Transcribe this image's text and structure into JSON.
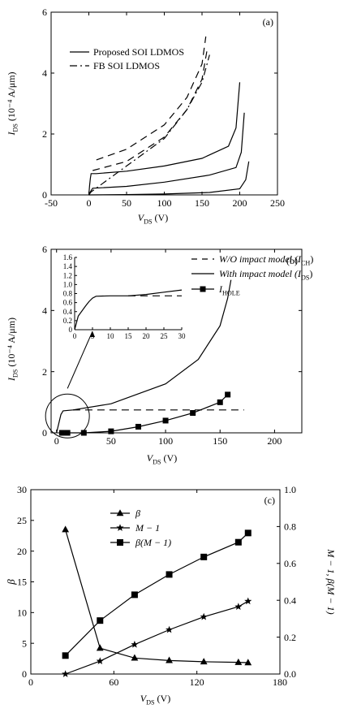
{
  "chart_data": [
    {
      "panel": "(a)",
      "type": "line",
      "xlabel_main": "V",
      "xlabel_sub": "DS",
      "xlabel_unit": "(V)",
      "ylabel_main": "I",
      "ylabel_sub": "DS",
      "ylabel_unit": "(10⁻⁴ A/μm)",
      "xlim": [
        -50,
        250
      ],
      "ylim": [
        0,
        6
      ],
      "xticks": [
        "-50",
        "0",
        "50",
        "100",
        "150",
        "200",
        "250"
      ],
      "yticks": [
        "0",
        "2",
        "4",
        "6"
      ],
      "legend": [
        "Proposed SOI LDMOS",
        "FB SOI LDMOS"
      ],
      "series": [
        {
          "name": "Proposed SOI LDMOS",
          "style": "solid",
          "points": [
            [
              0,
              0
            ],
            [
              1,
              0.3
            ],
            [
              2,
              0.55
            ],
            [
              3,
              0.7
            ],
            [
              10,
              0.7
            ],
            [
              50,
              0.78
            ],
            [
              100,
              0.95
            ],
            [
              150,
              1.2
            ],
            [
              185,
              1.6
            ],
            [
              195,
              2.2
            ],
            [
              200,
              3.7
            ]
          ]
        },
        {
          "name": "Proposed SOI LDMOS",
          "style": "solid",
          "points": [
            [
              0,
              0
            ],
            [
              2,
              0.1
            ],
            [
              5,
              0.22
            ],
            [
              50,
              0.28
            ],
            [
              100,
              0.42
            ],
            [
              160,
              0.65
            ],
            [
              195,
              0.9
            ],
            [
              202,
              1.4
            ],
            [
              206,
              2.7
            ]
          ]
        },
        {
          "name": "Proposed SOI LDMOS",
          "style": "solid",
          "points": [
            [
              0,
              0
            ],
            [
              50,
              0.01
            ],
            [
              100,
              0.03
            ],
            [
              160,
              0.08
            ],
            [
              200,
              0.2
            ],
            [
              208,
              0.5
            ],
            [
              212,
              1.1
            ]
          ]
        },
        {
          "name": "FB SOI LDMOS",
          "style": "dash",
          "points": [
            [
              10,
              1.15
            ],
            [
              50,
              1.5
            ],
            [
              100,
              2.3
            ],
            [
              130,
              3.2
            ],
            [
              150,
              4.3
            ],
            [
              155,
              5.2
            ]
          ]
        },
        {
          "name": "FB SOI LDMOS",
          "style": "dash",
          "points": [
            [
              5,
              0.8
            ],
            [
              50,
              1.1
            ],
            [
              100,
              1.9
            ],
            [
              130,
              2.8
            ],
            [
              150,
              3.8
            ],
            [
              157,
              4.8
            ]
          ]
        },
        {
          "name": "FB SOI LDMOS",
          "style": "dashdot",
          "points": [
            [
              0,
              0
            ],
            [
              3,
              0.1
            ],
            [
              25,
              0.5
            ],
            [
              50,
              0.95
            ],
            [
              100,
              1.85
            ],
            [
              130,
              2.8
            ],
            [
              150,
              3.7
            ],
            [
              160,
              4.6
            ]
          ]
        }
      ]
    },
    {
      "panel": "(b)",
      "type": "line",
      "xlabel_main": "V",
      "xlabel_sub": "DS",
      "xlabel_unit": "(V)",
      "ylabel_main": "I",
      "ylabel_sub": "DS",
      "ylabel_unit": "(10⁻⁴ A/μm)",
      "xlim": [
        -5,
        225
      ],
      "ylim": [
        0,
        6
      ],
      "xticks": [
        "0",
        "50",
        "100",
        "150",
        "200"
      ],
      "yticks": [
        "0",
        "2",
        "4",
        "6"
      ],
      "legend": [
        {
          "main": "W/O impact model (I",
          "sub": "CH",
          "end": ")"
        },
        {
          "main": "With impact model (I",
          "sub": "DS",
          "end": ")"
        },
        {
          "main": "I",
          "sub": "HOLE",
          "end": ""
        }
      ],
      "series": [
        {
          "name": "W/O impact model (ICH)",
          "style": "dash",
          "points": [
            [
              15,
              0.75
            ],
            [
              172,
              0.75
            ]
          ]
        },
        {
          "name": "With impact model (IDS)",
          "style": "solid",
          "points": [
            [
              0,
              0
            ],
            [
              2,
              0.3
            ],
            [
              4,
              0.6
            ],
            [
              6,
              0.72
            ],
            [
              15,
              0.75
            ],
            [
              50,
              0.95
            ],
            [
              100,
              1.6
            ],
            [
              130,
              2.4
            ],
            [
              150,
              3.5
            ],
            [
              157,
              4.4
            ],
            [
              160,
              5.0
            ]
          ]
        },
        {
          "name": "IHOLE",
          "style": "square",
          "points": [
            [
              5,
              0
            ],
            [
              10,
              0
            ],
            [
              25,
              0
            ],
            [
              50,
              0.05
            ],
            [
              75,
              0.2
            ],
            [
              100,
              0.4
            ],
            [
              125,
              0.65
            ],
            [
              150,
              1.0
            ],
            [
              157,
              1.25
            ]
          ]
        }
      ],
      "inset": {
        "xlim": [
          0,
          30
        ],
        "ylim": [
          0,
          1.6
        ],
        "xticks": [
          "0",
          "5",
          "10",
          "15",
          "20",
          "25",
          "30"
        ],
        "yticks": [
          "0",
          "0.2",
          "0.4",
          "0.6",
          "0.8",
          "1.0",
          "1.2",
          "1.4",
          "1.6"
        ],
        "solid": [
          [
            0,
            0
          ],
          [
            1,
            0.3
          ],
          [
            3,
            0.52
          ],
          [
            4,
            0.62
          ],
          [
            5,
            0.7
          ],
          [
            6,
            0.74
          ],
          [
            10,
            0.75
          ],
          [
            15,
            0.75
          ],
          [
            20,
            0.78
          ],
          [
            25,
            0.83
          ],
          [
            30,
            0.88
          ]
        ],
        "dash": [
          [
            15,
            0.75
          ],
          [
            30,
            0.75
          ]
        ]
      }
    },
    {
      "panel": "(c)",
      "type": "line",
      "xlabel_main": "V",
      "xlabel_sub": "DS",
      "xlabel_unit": "(V)",
      "ylabel_left": "β",
      "ylabel_right": "M − 1, β(M − 1)",
      "xlim": [
        0,
        180
      ],
      "ylim_left": [
        0,
        30
      ],
      "ylim_right": [
        0,
        1.0
      ],
      "xticks": [
        "0",
        "60",
        "120",
        "180"
      ],
      "yticks_left": [
        "0",
        "5",
        "10",
        "15",
        "20",
        "25",
        "30"
      ],
      "yticks_right": [
        "0.0",
        "0.2",
        "0.4",
        "0.6",
        "0.8",
        "1.0"
      ],
      "legend": [
        "β",
        "M − 1",
        "β(M − 1)"
      ],
      "series": [
        {
          "name": "β",
          "marker": "triangle",
          "axis": "left",
          "points": [
            [
              25,
              23.5
            ],
            [
              50,
              4.2
            ],
            [
              75,
              2.6
            ],
            [
              100,
              2.2
            ],
            [
              125,
              2.0
            ],
            [
              150,
              1.9
            ],
            [
              157,
              1.85
            ]
          ]
        },
        {
          "name": "M − 1",
          "marker": "star",
          "axis": "right",
          "points": [
            [
              25,
              0.0
            ],
            [
              50,
              0.07
            ],
            [
              75,
              0.16
            ],
            [
              100,
              0.24
            ],
            [
              125,
              0.31
            ],
            [
              150,
              0.365
            ],
            [
              157,
              0.395
            ]
          ]
        },
        {
          "name": "β(M − 1)",
          "marker": "square",
          "axis": "right",
          "points": [
            [
              25,
              0.1
            ],
            [
              50,
              0.29
            ],
            [
              75,
              0.43
            ],
            [
              100,
              0.54
            ],
            [
              125,
              0.635
            ],
            [
              150,
              0.715
            ],
            [
              157,
              0.765
            ]
          ]
        }
      ]
    }
  ]
}
